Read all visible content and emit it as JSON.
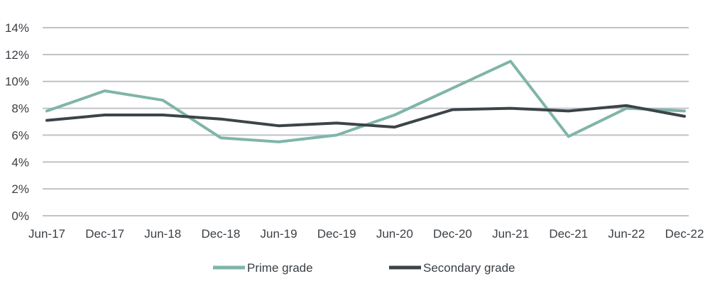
{
  "chart_data": {
    "type": "line",
    "title": "",
    "xlabel": "",
    "ylabel": "",
    "categories": [
      "Jun-17",
      "Dec-17",
      "Jun-18",
      "Dec-18",
      "Jun-19",
      "Dec-19",
      "Jun-20",
      "Dec-20",
      "Jun-21",
      "Dec-21",
      "Jun-22",
      "Dec-22"
    ],
    "y_ticks": [
      0,
      2,
      4,
      6,
      8,
      10,
      12,
      14
    ],
    "y_tick_labels": [
      "0%",
      "2%",
      "4%",
      "6%",
      "8%",
      "10%",
      "12%",
      "14%"
    ],
    "ylim": [
      0,
      14
    ],
    "grid": true,
    "legend_position": "bottom",
    "series": [
      {
        "name": "Prime grade",
        "color": "#7fb5a8",
        "values": [
          7.8,
          9.3,
          8.6,
          5.8,
          5.5,
          6.0,
          7.5,
          9.5,
          11.5,
          5.9,
          8.0,
          7.8
        ]
      },
      {
        "name": "Secondary grade",
        "color": "#3d4447",
        "values": [
          7.1,
          7.5,
          7.5,
          7.2,
          6.7,
          6.9,
          6.6,
          7.9,
          8.0,
          7.8,
          8.2,
          7.4
        ]
      }
    ]
  }
}
